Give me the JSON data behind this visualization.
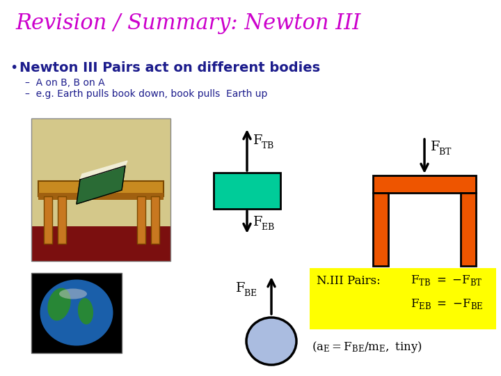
{
  "title": "Revision / Summary: Newton III",
  "title_color": "#CC00CC",
  "bullet_text": "Newton III Pairs act on different bodies",
  "bullet_color": "#1C1C8C",
  "sub1": "A on B, B on A",
  "sub2": "e.g. Earth pulls book down, book pulls  Earth up",
  "sub_color": "#1C1C8C",
  "bg_color": "#FFFFFF",
  "teal_block": "#00CC99",
  "orange_color": "#EE5500",
  "yellow_bg": "#FFFF00",
  "arrow_color": "#000000",
  "table_top": "#C8A428",
  "table_leg": "#C87820",
  "table_dark": "#8B4000",
  "table_floor": "#8B0000"
}
